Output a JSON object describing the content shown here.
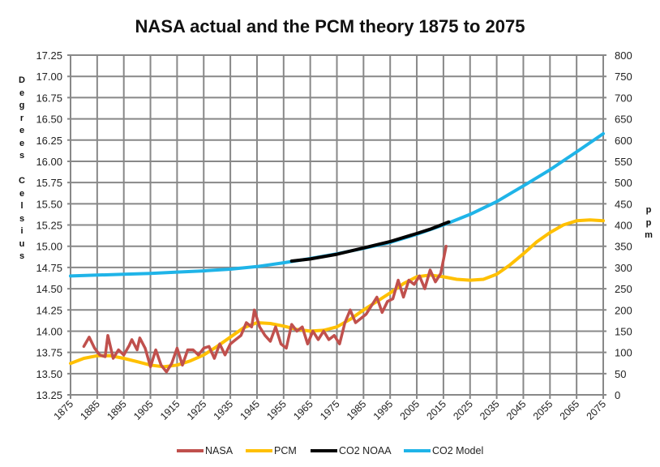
{
  "chart_data": {
    "type": "line",
    "title": "NASA actual and the PCM theory 1875 to 2075",
    "ylabel_left": "Degrees Celsius",
    "ylabel_right": "ppm",
    "xlim": [
      1875,
      2075
    ],
    "ylim_left": [
      13.25,
      17.25
    ],
    "ylim_right": [
      0,
      800
    ],
    "x_ticks": [
      "1875",
      "1885",
      "1895",
      "1905",
      "1915",
      "1925",
      "1935",
      "1945",
      "1955",
      "1965",
      "1975",
      "1985",
      "1995",
      "2005",
      "2015",
      "2025",
      "2035",
      "2045",
      "2055",
      "2065",
      "2075"
    ],
    "y_left_ticks": [
      "13.25",
      "13.50",
      "13.75",
      "14.00",
      "14.25",
      "14.50",
      "14.75",
      "15.00",
      "15.25",
      "15.50",
      "15.75",
      "16.00",
      "16.25",
      "16.50",
      "16.75",
      "17.00",
      "17.25"
    ],
    "y_right_ticks": [
      "0",
      "50",
      "100",
      "150",
      "200",
      "250",
      "300",
      "350",
      "400",
      "450",
      "500",
      "550",
      "600",
      "650",
      "700",
      "750",
      "800"
    ],
    "grid": true,
    "legend_position": "bottom",
    "series": [
      {
        "name": "NASA",
        "axis": "left",
        "color": "#c0504d",
        "x": [
          1880,
          1882,
          1884,
          1886,
          1888,
          1889,
          1891,
          1893,
          1895,
          1897,
          1898,
          1900,
          1901,
          1903,
          1905,
          1907,
          1909,
          1911,
          1913,
          1915,
          1917,
          1919,
          1921,
          1923,
          1925,
          1927,
          1929,
          1931,
          1933,
          1935,
          1937,
          1939,
          1941,
          1943,
          1944,
          1946,
          1948,
          1950,
          1952,
          1954,
          1956,
          1958,
          1960,
          1962,
          1964,
          1966,
          1968,
          1970,
          1972,
          1974,
          1976,
          1978,
          1980,
          1982,
          1984,
          1986,
          1988,
          1990,
          1992,
          1994,
          1996,
          1998,
          2000,
          2002,
          2004,
          2006,
          2008,
          2010,
          2012,
          2014,
          2016
        ],
        "y": [
          13.82,
          13.93,
          13.8,
          13.72,
          13.7,
          13.95,
          13.68,
          13.78,
          13.72,
          13.83,
          13.9,
          13.78,
          13.92,
          13.8,
          13.58,
          13.78,
          13.6,
          13.52,
          13.62,
          13.8,
          13.6,
          13.78,
          13.78,
          13.72,
          13.8,
          13.82,
          13.68,
          13.85,
          13.72,
          13.85,
          13.9,
          13.95,
          14.1,
          14.05,
          14.25,
          14.05,
          13.95,
          13.88,
          14.05,
          13.85,
          13.8,
          14.08,
          14.0,
          14.05,
          13.85,
          14.0,
          13.9,
          14.0,
          13.9,
          13.95,
          13.85,
          14.1,
          14.25,
          14.1,
          14.15,
          14.2,
          14.3,
          14.4,
          14.22,
          14.35,
          14.38,
          14.6,
          14.4,
          14.6,
          14.55,
          14.65,
          14.5,
          14.72,
          14.58,
          14.68,
          15.0
        ]
      },
      {
        "name": "PCM",
        "axis": "left",
        "color": "#ffc000",
        "x": [
          1875,
          1880,
          1885,
          1890,
          1895,
          1900,
          1905,
          1910,
          1915,
          1920,
          1925,
          1930,
          1935,
          1940,
          1945,
          1950,
          1955,
          1960,
          1965,
          1970,
          1975,
          1980,
          1985,
          1990,
          1995,
          2000,
          2005,
          2010,
          2015,
          2020,
          2025,
          2030,
          2035,
          2040,
          2045,
          2050,
          2055,
          2060,
          2065,
          2070,
          2075
        ],
        "y": [
          13.62,
          13.68,
          13.71,
          13.71,
          13.68,
          13.64,
          13.6,
          13.58,
          13.6,
          13.65,
          13.72,
          13.82,
          13.93,
          14.04,
          14.1,
          14.09,
          14.06,
          14.02,
          14.0,
          14.01,
          14.05,
          14.14,
          14.25,
          14.35,
          14.45,
          14.56,
          14.64,
          14.66,
          14.64,
          14.61,
          14.6,
          14.61,
          14.67,
          14.78,
          14.91,
          15.05,
          15.16,
          15.25,
          15.3,
          15.31,
          15.3
        ]
      },
      {
        "name": "CO2 NOAA",
        "axis": "right",
        "color": "#000000",
        "x": [
          1958,
          1965,
          1975,
          1985,
          1995,
          2005,
          2010,
          2017
        ],
        "y": [
          315,
          320,
          331,
          346,
          361,
          380,
          390,
          407
        ]
      },
      {
        "name": "CO2 Model",
        "axis": "right",
        "color": "#1fb4e8",
        "x": [
          1875,
          1885,
          1895,
          1905,
          1915,
          1925,
          1935,
          1945,
          1955,
          1965,
          1975,
          1985,
          1995,
          2005,
          2015,
          2025,
          2035,
          2045,
          2055,
          2065,
          2075
        ],
        "y": [
          280,
          282,
          284,
          286,
          289,
          292,
          296,
          302,
          311,
          321,
          332,
          345,
          359,
          378,
          400,
          425,
          455,
          492,
          530,
          572,
          615
        ]
      }
    ]
  }
}
